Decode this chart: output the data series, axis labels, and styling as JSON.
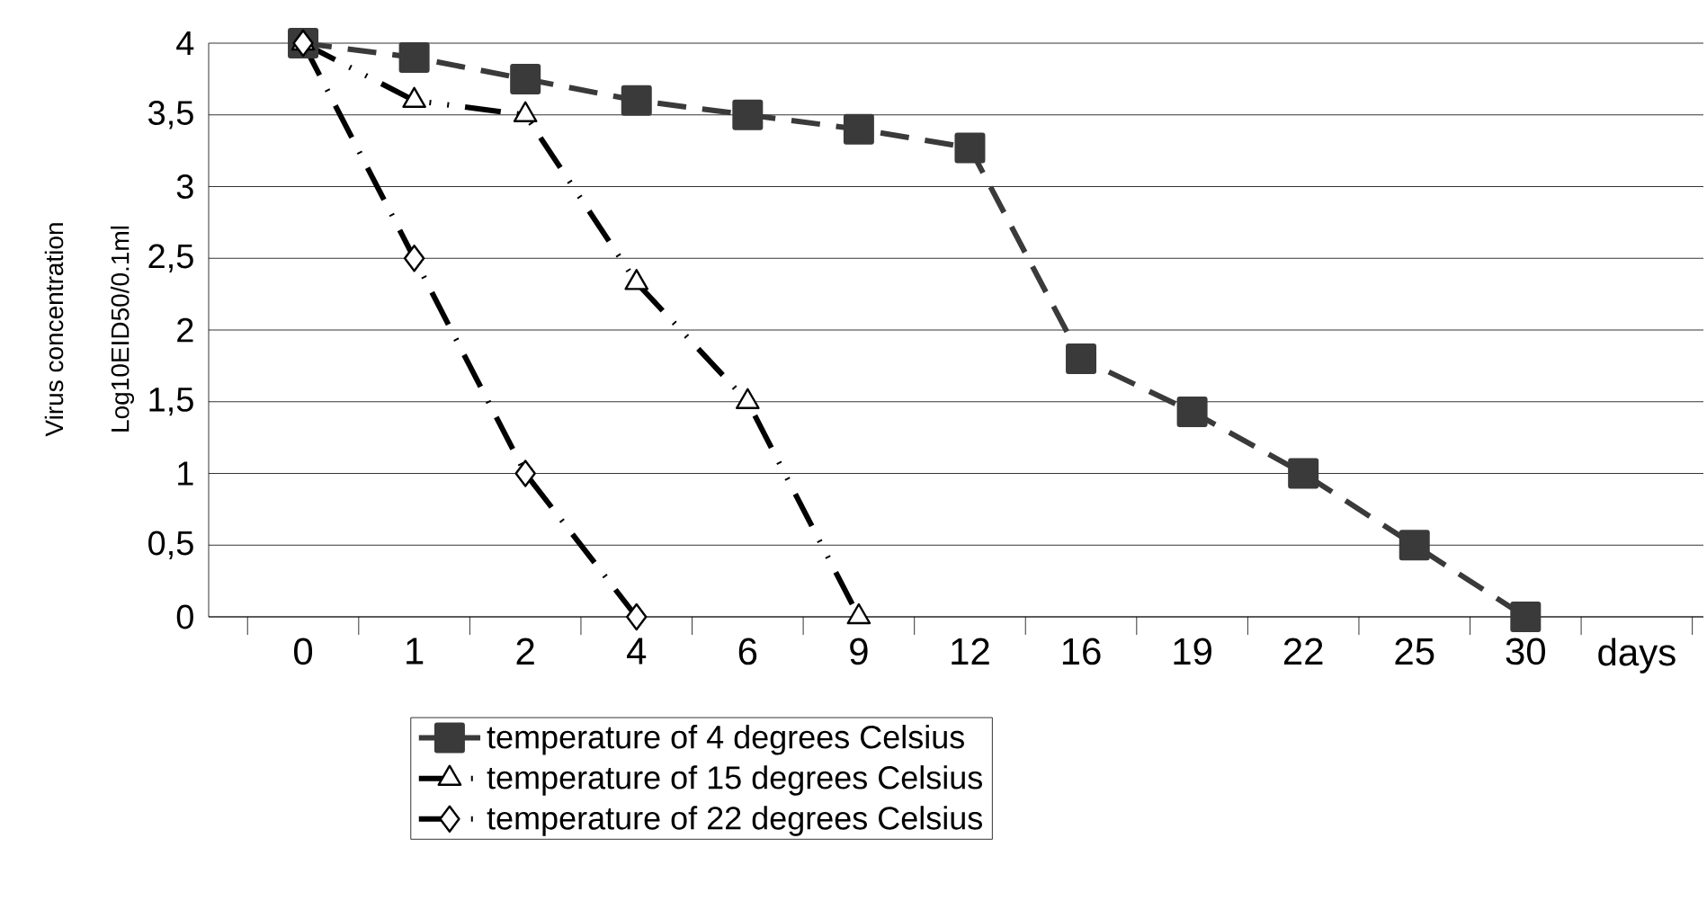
{
  "chart_data": {
    "type": "line",
    "categories": [
      "0",
      "1",
      "2",
      "4",
      "6",
      "9",
      "12",
      "16",
      "19",
      "22",
      "25",
      "30",
      "days"
    ],
    "ylabel": [
      "Virus concentration",
      "Log10EID50/0.1ml"
    ],
    "ylim": [
      0,
      4
    ],
    "yticks": [
      0,
      {
        "value": 0.5,
        "label": "0,5"
      },
      1,
      {
        "value": 1.5,
        "label": "1,5"
      },
      2,
      {
        "value": 2.5,
        "label": "2,5"
      },
      3,
      {
        "value": 3.5,
        "label": "3,5"
      },
      4
    ],
    "grid": "y",
    "legend": "bottom",
    "series": [
      {
        "name": "temperature of 4 degrees Celsius",
        "color": "#3a3a3a",
        "marker": "square",
        "line_style": "dashed",
        "values": [
          4,
          3.9,
          3.75,
          3.6,
          3.5,
          3.4,
          3.27,
          1.8,
          1.43,
          1.0,
          0.5,
          0,
          null
        ]
      },
      {
        "name": "temperature of 15 degrees Celsius",
        "color": "#000000",
        "marker": "triangle",
        "line_style": "dashdotdot",
        "values": [
          4,
          3.6,
          3.5,
          2.33,
          1.5,
          0,
          null,
          null,
          null,
          null,
          null,
          null,
          null
        ]
      },
      {
        "name": "temperature of 22 degrees Celsius",
        "color": "#000000",
        "marker": "diamond",
        "line_style": "dashdot",
        "values": [
          4,
          2.5,
          1.0,
          0,
          null,
          null,
          null,
          null,
          null,
          null,
          null,
          null,
          null
        ]
      }
    ]
  }
}
